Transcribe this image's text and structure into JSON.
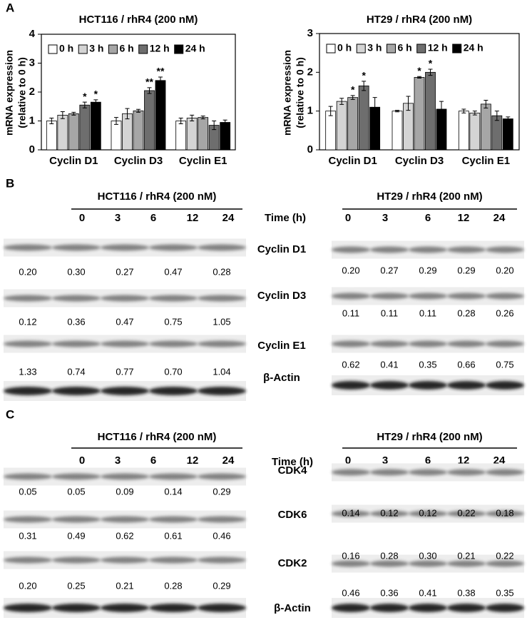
{
  "section_labels": [
    "A",
    "B",
    "C"
  ],
  "chart_data": [
    {
      "type": "bar",
      "title": "HCT116 / rhR4 (200 nM)",
      "ylabel": [
        "mRNA expression",
        "(relative to 0 h)"
      ],
      "categories": [
        "Cyclin D1",
        "Cyclin D3",
        "Cyclin E1"
      ],
      "ylim": [
        0,
        4
      ],
      "yticks": [
        0,
        1,
        2,
        3,
        4
      ],
      "series": [
        {
          "name": "0 h",
          "color": "#ffffff",
          "values": [
            1.0,
            1.0,
            1.0
          ],
          "errors": [
            0.1,
            0.12,
            0.1
          ],
          "significance": [
            null,
            null,
            null
          ]
        },
        {
          "name": "3 h",
          "color": "#d4d4d4",
          "values": [
            1.2,
            1.25,
            1.1
          ],
          "errors": [
            0.12,
            0.18,
            0.1
          ],
          "significance": [
            null,
            null,
            null
          ]
        },
        {
          "name": "6 h",
          "color": "#a6a6a6",
          "values": [
            1.25,
            1.35,
            1.12
          ],
          "errors": [
            0.05,
            0.05,
            0.05
          ],
          "significance": [
            null,
            null,
            null
          ]
        },
        {
          "name": "12 h",
          "color": "#6e6e6e",
          "values": [
            1.55,
            2.05,
            0.85
          ],
          "errors": [
            0.1,
            0.1,
            0.15
          ],
          "significance": [
            "*",
            "**",
            null
          ]
        },
        {
          "name": "24 h",
          "color": "#000000",
          "values": [
            1.65,
            2.4,
            0.95
          ],
          "errors": [
            0.08,
            0.12,
            0.08
          ],
          "significance": [
            "*",
            "**",
            null
          ]
        }
      ]
    },
    {
      "type": "bar",
      "title": "HT29 / rhR4 (200 nM)",
      "ylabel": [
        "mRNA expression",
        "(relative to 0 h)"
      ],
      "categories": [
        "Cyclin D1",
        "Cyclin D3",
        "Cyclin E1"
      ],
      "ylim": [
        0,
        3
      ],
      "yticks": [
        0,
        1,
        2,
        3
      ],
      "series": [
        {
          "name": "0 h",
          "color": "#ffffff",
          "values": [
            1.0,
            1.0,
            1.0
          ],
          "errors": [
            0.12,
            0.02,
            0.05
          ],
          "significance": [
            null,
            null,
            null
          ]
        },
        {
          "name": "3 h",
          "color": "#d4d4d4",
          "values": [
            1.25,
            1.2,
            0.95
          ],
          "errors": [
            0.08,
            0.18,
            0.05
          ],
          "significance": [
            null,
            null,
            null
          ]
        },
        {
          "name": "6 h",
          "color": "#a6a6a6",
          "values": [
            1.35,
            1.87,
            1.18
          ],
          "errors": [
            0.05,
            0.02,
            0.1
          ],
          "significance": [
            "*",
            "*",
            null
          ]
        },
        {
          "name": "12 h",
          "color": "#6e6e6e",
          "values": [
            1.65,
            2.0,
            0.88
          ],
          "errors": [
            0.12,
            0.08,
            0.12
          ],
          "significance": [
            "*",
            "*",
            null
          ]
        },
        {
          "name": "24 h",
          "color": "#000000",
          "values": [
            1.1,
            1.05,
            0.8
          ],
          "errors": [
            0.25,
            0.2,
            0.05
          ],
          "significance": [
            null,
            null,
            null
          ]
        }
      ]
    }
  ],
  "panels": [
    {
      "time_label": "Time (h)",
      "proteins": [
        "Cyclin D1",
        "Cyclin D3",
        "Cyclin E1",
        "β-Actin"
      ],
      "groups": [
        {
          "title": "HCT116 / rhR4 (200 nM)",
          "times": [
            "0",
            "3",
            "6",
            "12",
            "24"
          ],
          "rows": [
            [
              "0.20",
              "0.30",
              "0.27",
              "0.47",
              "0.28"
            ],
            [
              "0.12",
              "0.36",
              "0.47",
              "0.75",
              "1.05"
            ],
            [
              "1.33",
              "0.74",
              "0.77",
              "0.70",
              "1.04"
            ]
          ]
        },
        {
          "title": "HT29 / rhR4 (200 nM)",
          "times": [
            "0",
            "3",
            "6",
            "12",
            "24"
          ],
          "rows": [
            [
              "0.20",
              "0.27",
              "0.29",
              "0.29",
              "0.20"
            ],
            [
              "0.11",
              "0.11",
              "0.11",
              "0.28",
              "0.26"
            ],
            [
              "0.62",
              "0.41",
              "0.35",
              "0.66",
              "0.75"
            ]
          ]
        }
      ]
    },
    {
      "time_label": "Time (h)",
      "proteins": [
        "CDK4",
        "CDK6",
        "CDK2",
        "β-Actin"
      ],
      "groups": [
        {
          "title": "HCT116 / rhR4 (200 nM)",
          "times": [
            "0",
            "3",
            "6",
            "12",
            "24"
          ],
          "rows": [
            [
              "0.05",
              "0.05",
              "0.09",
              "0.14",
              "0.29"
            ],
            [
              "0.31",
              "0.49",
              "0.62",
              "0.61",
              "0.46"
            ],
            [
              "0.20",
              "0.25",
              "0.21",
              "0.28",
              "0.29"
            ]
          ]
        },
        {
          "title": "HT29 / rhR4 (200 nM)",
          "times": [
            "0",
            "3",
            "6",
            "12",
            "24"
          ],
          "rows": [
            [
              "0.14",
              "0.12",
              "0.12",
              "0.22",
              "0.18"
            ],
            [
              "0.16",
              "0.28",
              "0.30",
              "0.21",
              "0.22"
            ],
            [
              "0.46",
              "0.36",
              "0.41",
              "0.38",
              "0.35"
            ]
          ]
        }
      ]
    }
  ]
}
